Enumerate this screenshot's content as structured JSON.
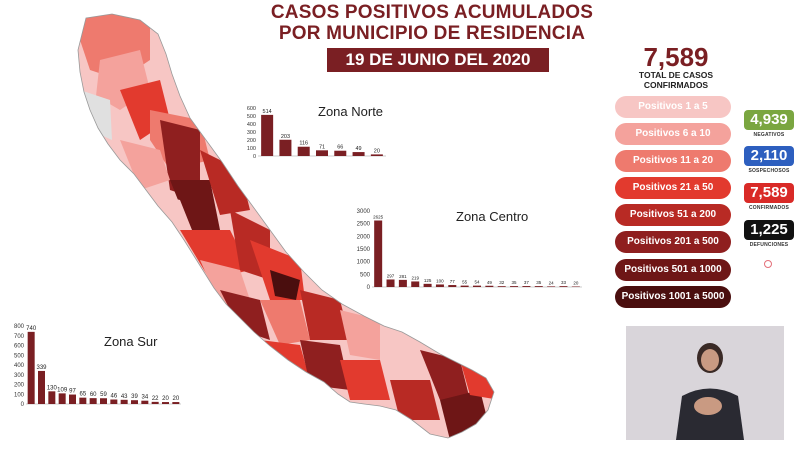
{
  "header": {
    "title_line1": "CASOS POSITIVOS ACUMULADOS",
    "title_line2": "POR MUNICIPIO DE RESIDENCIA",
    "date": "19 DE JUNIO DEL 2020"
  },
  "totals": {
    "total": "7,589",
    "total_label_1": "TOTAL DE CASOS",
    "total_label_2": "CONFIRMADOS"
  },
  "legend": [
    {
      "label": "Positivos 1 a 5",
      "color": "#f7c6c4"
    },
    {
      "label": "Positivos 6 a 10",
      "color": "#f4a29c"
    },
    {
      "label": "Positivos 11 a 20",
      "color": "#ee7a6e"
    },
    {
      "label": "Positivos 21 a 50",
      "color": "#e23a2e"
    },
    {
      "label": "Positivos 51 a 200",
      "color": "#b82a24"
    },
    {
      "label": "Positivos 201 a 500",
      "color": "#8f1f1f"
    },
    {
      "label": "Positivos 501 a 1000",
      "color": "#6e1616"
    },
    {
      "label": "Positivos 1001 a 5000",
      "color": "#4a0e0e"
    }
  ],
  "stats": [
    {
      "value": "4,939",
      "label": "NEGATIVOS",
      "color": "#7aa640"
    },
    {
      "value": "2,110",
      "label": "SOSPECHOSOS",
      "color": "#2d5fbf"
    },
    {
      "value": "7,589",
      "label": "CONFIRMADOS",
      "color": "#d92a27"
    },
    {
      "value": "1,225",
      "label": "DEFUNCIONES",
      "color": "#111111"
    }
  ],
  "chart_data": [
    {
      "type": "bar",
      "title": "Zona Norte",
      "ylim": [
        0,
        600
      ],
      "yticks": [
        0,
        100,
        200,
        300,
        400,
        500,
        600
      ],
      "values": [
        514,
        203,
        116,
        71,
        66,
        49,
        20
      ],
      "color": "#7a1f23"
    },
    {
      "type": "bar",
      "title": "Zona Centro",
      "ylim": [
        0,
        3000
      ],
      "yticks": [
        0,
        500,
        1000,
        1500,
        2000,
        2500,
        3000
      ],
      "values": [
        2625,
        297,
        281,
        219,
        125,
        100,
        77,
        55,
        54,
        49,
        32,
        35,
        37,
        35,
        24,
        33,
        20
      ],
      "color": "#7a1f23"
    },
    {
      "type": "bar",
      "title": "Zona Sur",
      "ylim": [
        0,
        800
      ],
      "yticks": [
        0,
        100,
        200,
        300,
        400,
        500,
        600,
        700,
        800
      ],
      "values": [
        740,
        339,
        130,
        109,
        97,
        65,
        60,
        59,
        46,
        43,
        39,
        34,
        22,
        20,
        20
      ],
      "color": "#7a1f23"
    }
  ]
}
